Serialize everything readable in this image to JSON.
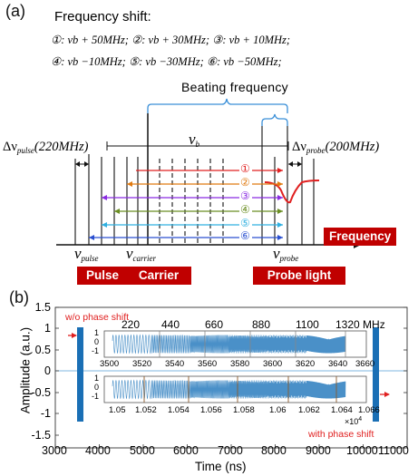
{
  "panel_a": {
    "label": "(a)",
    "title": "Frequency shift:",
    "equations_row1": "①: νb + 50MHz; ②: νb + 30MHz; ③: νb + 10MHz;",
    "equations_row2": "④: νb −10MHz; ⑤: νb −30MHz; ⑥: νb −50MHz;",
    "beating_frequency": "Beating  frequency",
    "delta_pulse": "Δν",
    "delta_pulse_sub": "pulse",
    "delta_pulse_value": "(220MHz)",
    "delta_probe": "Δν",
    "delta_probe_sub": "probe",
    "delta_probe_value": "(200MHz)",
    "nu_b": "ν",
    "nu_b_sub": "b",
    "nu_pulse": "ν",
    "nu_pulse_sub": "pulse",
    "nu_carrier": "ν",
    "nu_carrier_sub": "carrier",
    "nu_probe": "ν",
    "nu_probe_sub": "probe",
    "frequency_box": "Frequency",
    "pulse_box": "Pulse",
    "carrier_box": "Carrier",
    "probe_box": "Probe light",
    "arrows": [
      {
        "label": "①",
        "color": "#e02020"
      },
      {
        "label": "②",
        "color": "#e07a10"
      },
      {
        "label": "③",
        "color": "#8a2be2"
      },
      {
        "label": "④",
        "color": "#6b8e23"
      },
      {
        "label": "⑤",
        "color": "#30b0e0"
      },
      {
        "label": "⑥",
        "color": "#2a4fd0"
      }
    ]
  },
  "panel_b": {
    "label": "(b)",
    "wo_phase": "w/o phase shift",
    "with_phase": "with phase shift",
    "mhz_labels": [
      "220",
      "440",
      "660",
      "880",
      "1100",
      "1320 MHz"
    ],
    "inset1_ticks": [
      "3500",
      "3520",
      "3540",
      "3560",
      "3580",
      "3600",
      "3620",
      "3640",
      "3660"
    ],
    "inset2_ticks": [
      "1.05",
      "1.052",
      "1.054",
      "1.056",
      "1.058",
      "1.06",
      "1.062",
      "1.064",
      "1.066"
    ],
    "inset2_exponent": "×10",
    "inset2_exponent_power": "4",
    "inset_y_ticks": [
      "1",
      "0",
      "-1"
    ],
    "colors": {
      "signal": "#4a90c8",
      "bar": "#1a6fb5",
      "red": "#e02020"
    }
  },
  "chart_data": {
    "type": "line",
    "title": "",
    "xlabel": "Time (ns)",
    "ylabel": "Amplitude (a.u.)",
    "xlim": [
      3000,
      11000
    ],
    "ylim": [
      -1.5,
      1.5
    ],
    "x_ticks": [
      "3000",
      "4000",
      "5000",
      "6000",
      "7000",
      "8000",
      "9000",
      "10000",
      "11000"
    ],
    "y_ticks": [
      "1.5",
      "1",
      "0.5",
      "0",
      "-0.5",
      "-1",
      "-1.5"
    ],
    "series": [
      {
        "name": "w/o phase shift",
        "segment": [
          3500,
          3660
        ]
      },
      {
        "name": "with phase shift",
        "segment": [
          10500,
          10660
        ]
      }
    ],
    "frequency_steps_MHz": [
      220,
      440,
      660,
      880,
      1100,
      1320
    ]
  }
}
